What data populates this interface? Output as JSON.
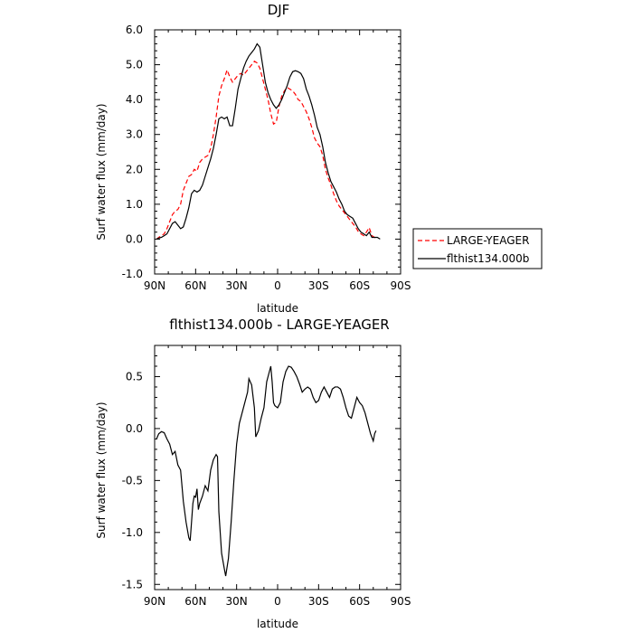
{
  "chart_data": [
    {
      "type": "line",
      "title": "DJF",
      "xlabel": "latitude",
      "ylabel": "Surf water flux (mm/day)",
      "xlim": [
        90,
        -90
      ],
      "ylim": [
        -1.0,
        6.0
      ],
      "x_ticks": [
        90,
        60,
        30,
        0,
        -30,
        -60,
        -90
      ],
      "x_tick_labels": [
        "90N",
        "60N",
        "30N",
        "0",
        "30S",
        "60S",
        "90S"
      ],
      "y_ticks": [
        -1.0,
        0.0,
        1.0,
        2.0,
        3.0,
        4.0,
        5.0,
        6.0
      ],
      "y_tick_labels": [
        "-1.0",
        "0.0",
        "1.0",
        "2.0",
        "3.0",
        "4.0",
        "5.0",
        "6.0"
      ],
      "legend_position": "right",
      "series": [
        {
          "name": "LARGE-YEAGER",
          "color": "#ff0000",
          "dash": "dashed",
          "points": [
            [
              88.6,
              0.0
            ],
            [
              87,
              0.05
            ],
            [
              85,
              0.1
            ],
            [
              83,
              0.15
            ],
            [
              81,
              0.3
            ],
            [
              79,
              0.5
            ],
            [
              77,
              0.7
            ],
            [
              75,
              0.8
            ],
            [
              73,
              0.85
            ],
            [
              71,
              1.0
            ],
            [
              69,
              1.4
            ],
            [
              67,
              1.6
            ],
            [
              65,
              1.8
            ],
            [
              63,
              1.85
            ],
            [
              61,
              2.0
            ],
            [
              59,
              1.95
            ],
            [
              57,
              2.2
            ],
            [
              55,
              2.3
            ],
            [
              53,
              2.35
            ],
            [
              51,
              2.4
            ],
            [
              49,
              2.6
            ],
            [
              47,
              3.0
            ],
            [
              45,
              3.5
            ],
            [
              43,
              4.1
            ],
            [
              41,
              4.4
            ],
            [
              39,
              4.6
            ],
            [
              37,
              4.85
            ],
            [
              35,
              4.65
            ],
            [
              33,
              4.5
            ],
            [
              31,
              4.6
            ],
            [
              29,
              4.7
            ],
            [
              27,
              4.75
            ],
            [
              25,
              4.7
            ],
            [
              23,
              4.8
            ],
            [
              21,
              4.9
            ],
            [
              19,
              5.0
            ],
            [
              17,
              5.1
            ],
            [
              15,
              5.05
            ],
            [
              13,
              4.9
            ],
            [
              11,
              4.6
            ],
            [
              9,
              4.3
            ],
            [
              7,
              4.0
            ],
            [
              5,
              3.6
            ],
            [
              3,
              3.3
            ],
            [
              1,
              3.35
            ],
            [
              -1,
              3.8
            ],
            [
              -3,
              4.1
            ],
            [
              -5,
              4.25
            ],
            [
              -7,
              4.35
            ],
            [
              -9,
              4.3
            ],
            [
              -11,
              4.25
            ],
            [
              -13,
              4.15
            ],
            [
              -15,
              4.0
            ],
            [
              -17,
              3.95
            ],
            [
              -19,
              3.8
            ],
            [
              -21,
              3.65
            ],
            [
              -23,
              3.45
            ],
            [
              -25,
              3.2
            ],
            [
              -27,
              2.9
            ],
            [
              -29,
              2.75
            ],
            [
              -31,
              2.65
            ],
            [
              -33,
              2.4
            ],
            [
              -35,
              2.0
            ],
            [
              -37,
              1.75
            ],
            [
              -39,
              1.55
            ],
            [
              -41,
              1.3
            ],
            [
              -43,
              1.1
            ],
            [
              -45,
              0.95
            ],
            [
              -47,
              0.85
            ],
            [
              -49,
              0.75
            ],
            [
              -51,
              0.65
            ],
            [
              -53,
              0.55
            ],
            [
              -55,
              0.45
            ],
            [
              -57,
              0.35
            ],
            [
              -59,
              0.22
            ],
            [
              -61,
              0.15
            ],
            [
              -63,
              0.1
            ],
            [
              -65,
              0.2
            ],
            [
              -67,
              0.33
            ],
            [
              -69,
              0.1
            ],
            [
              -71,
              0.05
            ],
            [
              -73,
              0.0
            ]
          ]
        },
        {
          "name": "flthist134.000b",
          "color": "#000000",
          "dash": "solid",
          "points": [
            [
              88.6,
              0.0
            ],
            [
              87,
              0.03
            ],
            [
              85,
              0.05
            ],
            [
              83,
              0.1
            ],
            [
              81,
              0.15
            ],
            [
              79,
              0.3
            ],
            [
              77,
              0.45
            ],
            [
              75,
              0.5
            ],
            [
              73,
              0.4
            ],
            [
              71,
              0.3
            ],
            [
              69,
              0.35
            ],
            [
              67,
              0.6
            ],
            [
              65,
              0.9
            ],
            [
              63,
              1.3
            ],
            [
              61,
              1.4
            ],
            [
              59,
              1.35
            ],
            [
              57,
              1.4
            ],
            [
              55,
              1.55
            ],
            [
              53,
              1.8
            ],
            [
              51,
              2.05
            ],
            [
              49,
              2.3
            ],
            [
              47,
              2.6
            ],
            [
              45,
              3.0
            ],
            [
              43,
              3.45
            ],
            [
              41,
              3.5
            ],
            [
              39,
              3.45
            ],
            [
              37,
              3.5
            ],
            [
              35,
              3.25
            ],
            [
              33,
              3.25
            ],
            [
              31,
              3.75
            ],
            [
              29,
              4.3
            ],
            [
              27,
              4.6
            ],
            [
              25,
              4.9
            ],
            [
              23,
              5.1
            ],
            [
              21,
              5.25
            ],
            [
              19,
              5.35
            ],
            [
              17,
              5.45
            ],
            [
              15,
              5.6
            ],
            [
              13,
              5.5
            ],
            [
              11,
              5.0
            ],
            [
              9,
              4.5
            ],
            [
              7,
              4.2
            ],
            [
              5,
              4.0
            ],
            [
              3,
              3.85
            ],
            [
              1,
              3.75
            ],
            [
              -1,
              3.85
            ],
            [
              -3,
              4.0
            ],
            [
              -5,
              4.2
            ],
            [
              -7,
              4.4
            ],
            [
              -9,
              4.65
            ],
            [
              -11,
              4.8
            ],
            [
              -13,
              4.83
            ],
            [
              -15,
              4.8
            ],
            [
              -17,
              4.75
            ],
            [
              -19,
              4.6
            ],
            [
              -21,
              4.3
            ],
            [
              -23,
              4.1
            ],
            [
              -25,
              3.85
            ],
            [
              -27,
              3.55
            ],
            [
              -29,
              3.2
            ],
            [
              -31,
              3.0
            ],
            [
              -33,
              2.65
            ],
            [
              -35,
              2.2
            ],
            [
              -37,
              1.9
            ],
            [
              -39,
              1.65
            ],
            [
              -41,
              1.5
            ],
            [
              -43,
              1.35
            ],
            [
              -45,
              1.15
            ],
            [
              -47,
              1.0
            ],
            [
              -49,
              0.8
            ],
            [
              -51,
              0.7
            ],
            [
              -53,
              0.65
            ],
            [
              -55,
              0.6
            ],
            [
              -57,
              0.45
            ],
            [
              -59,
              0.3
            ],
            [
              -61,
              0.2
            ],
            [
              -63,
              0.15
            ],
            [
              -65,
              0.1
            ],
            [
              -67,
              0.2
            ],
            [
              -69,
              0.05
            ],
            [
              -71,
              0.05
            ],
            [
              -73,
              0.05
            ],
            [
              -75,
              0.0
            ]
          ]
        }
      ]
    },
    {
      "type": "line",
      "title": "flthist134.000b - LARGE-YEAGER",
      "xlabel": "latitude",
      "ylabel": "Surf water flux (mm/day)",
      "xlim": [
        90,
        -90
      ],
      "ylim": [
        -1.55,
        0.8
      ],
      "x_ticks": [
        90,
        60,
        30,
        0,
        -30,
        -60,
        -90
      ],
      "x_tick_labels": [
        "90N",
        "60N",
        "30N",
        "0",
        "30S",
        "60S",
        "90S"
      ],
      "y_ticks": [
        -1.5,
        -1.0,
        -0.5,
        0.0,
        0.5
      ],
      "y_tick_labels": [
        "-1.5",
        "-1.0",
        "-0.5",
        "0.0",
        "0.5"
      ],
      "series": [
        {
          "color": "#000000",
          "dash": "solid",
          "points": [
            [
              88.6,
              -0.1
            ],
            [
              87,
              -0.05
            ],
            [
              85,
              -0.03
            ],
            [
              83,
              -0.04
            ],
            [
              81,
              -0.1
            ],
            [
              79,
              -0.15
            ],
            [
              77,
              -0.25
            ],
            [
              75,
              -0.22
            ],
            [
              73,
              -0.35
            ],
            [
              71,
              -0.4
            ],
            [
              69,
              -0.7
            ],
            [
              67,
              -0.9
            ],
            [
              65,
              -1.05
            ],
            [
              64,
              -1.08
            ],
            [
              62,
              -0.72
            ],
            [
              61,
              -0.65
            ],
            [
              60,
              -0.66
            ],
            [
              59,
              -0.58
            ],
            [
              58,
              -0.78
            ],
            [
              57,
              -0.72
            ],
            [
              55,
              -0.65
            ],
            [
              53,
              -0.55
            ],
            [
              51,
              -0.6
            ],
            [
              49,
              -0.4
            ],
            [
              47,
              -0.3
            ],
            [
              45,
              -0.25
            ],
            [
              44,
              -0.27
            ],
            [
              43,
              -0.8
            ],
            [
              41,
              -1.2
            ],
            [
              39,
              -1.35
            ],
            [
              38,
              -1.42
            ],
            [
              36,
              -1.25
            ],
            [
              34,
              -0.9
            ],
            [
              32,
              -0.5
            ],
            [
              30,
              -0.15
            ],
            [
              28,
              0.05
            ],
            [
              26,
              0.15
            ],
            [
              24,
              0.25
            ],
            [
              22,
              0.35
            ],
            [
              21,
              0.48
            ],
            [
              19,
              0.42
            ],
            [
              17,
              0.2
            ],
            [
              16,
              -0.08
            ],
            [
              14,
              -0.02
            ],
            [
              12,
              0.1
            ],
            [
              10,
              0.2
            ],
            [
              8,
              0.45
            ],
            [
              6,
              0.55
            ],
            [
              5,
              0.6
            ],
            [
              4,
              0.45
            ],
            [
              3,
              0.25
            ],
            [
              2,
              0.22
            ],
            [
              0,
              0.2
            ],
            [
              -2,
              0.25
            ],
            [
              -4,
              0.45
            ],
            [
              -6,
              0.55
            ],
            [
              -8,
              0.6
            ],
            [
              -10,
              0.59
            ],
            [
              -12,
              0.55
            ],
            [
              -14,
              0.5
            ],
            [
              -16,
              0.43
            ],
            [
              -18,
              0.35
            ],
            [
              -20,
              0.38
            ],
            [
              -22,
              0.4
            ],
            [
              -24,
              0.38
            ],
            [
              -26,
              0.3
            ],
            [
              -28,
              0.25
            ],
            [
              -30,
              0.27
            ],
            [
              -32,
              0.35
            ],
            [
              -34,
              0.4
            ],
            [
              -36,
              0.35
            ],
            [
              -38,
              0.3
            ],
            [
              -40,
              0.38
            ],
            [
              -42,
              0.4
            ],
            [
              -44,
              0.4
            ],
            [
              -46,
              0.38
            ],
            [
              -48,
              0.3
            ],
            [
              -50,
              0.2
            ],
            [
              -52,
              0.12
            ],
            [
              -54,
              0.1
            ],
            [
              -56,
              0.2
            ],
            [
              -58,
              0.3
            ],
            [
              -60,
              0.25
            ],
            [
              -62,
              0.22
            ],
            [
              -64,
              0.15
            ],
            [
              -66,
              0.05
            ],
            [
              -68,
              -0.05
            ],
            [
              -70,
              -0.12
            ],
            [
              -71,
              -0.05
            ],
            [
              -72,
              -0.02
            ]
          ]
        }
      ]
    }
  ]
}
